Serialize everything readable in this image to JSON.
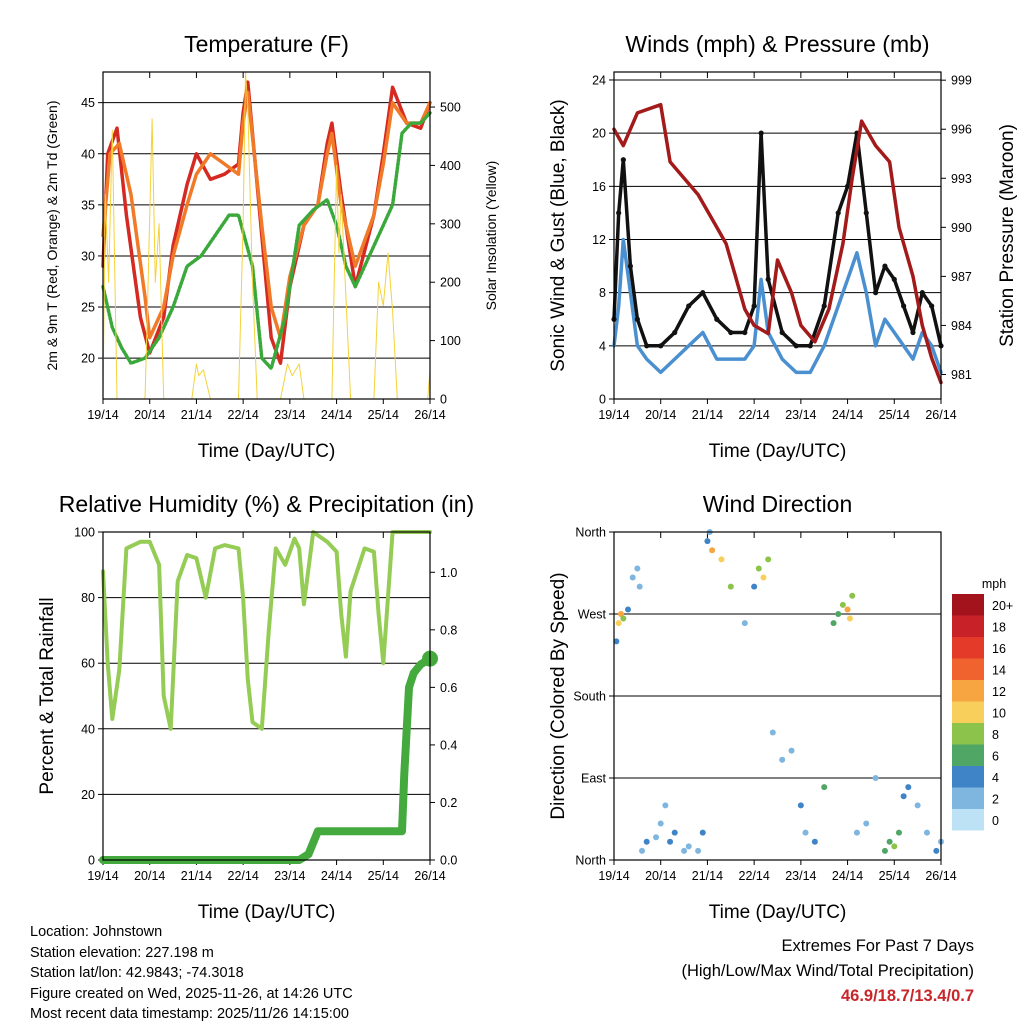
{
  "chart_data": [
    {
      "type": "line",
      "title": "Temperature (F)",
      "xlabel": "Time (Day/UTC)",
      "ylabel": "2m & 9m T (Red, Orange) & 2m Td (Green)",
      "y2label": "Solar Insolation (Yellow)",
      "categories": [
        "19/14",
        "20/14",
        "21/14",
        "22/14",
        "23/14",
        "24/14",
        "25/14",
        "26/14"
      ],
      "ylim": [
        16,
        48
      ],
      "yticks": [
        "20",
        "25",
        "30",
        "35",
        "40",
        "45"
      ],
      "y2lim": [
        0,
        560
      ],
      "y2ticks": [
        "0",
        "100",
        "200",
        "300",
        "400",
        "500"
      ],
      "series": [
        {
          "name": "2m T",
          "color": "#d42a22",
          "x": [
            0,
            0.1,
            0.3,
            0.5,
            0.8,
            1.0,
            1.3,
            1.5,
            1.8,
            2.0,
            2.3,
            2.6,
            2.9,
            3.0,
            3.1,
            3.4,
            3.6,
            3.8,
            4.0,
            4.3,
            4.6,
            4.8,
            4.9,
            5.1,
            5.4,
            5.8,
            6.0,
            6.2,
            6.5,
            6.8,
            7.0
          ],
          "values": [
            29,
            40,
            42.5,
            34,
            24,
            20.5,
            24,
            31,
            37,
            40,
            37.5,
            38,
            39,
            44,
            47,
            32,
            22,
            19.5,
            27,
            33,
            35,
            41,
            43,
            36,
            27,
            34,
            40,
            46.5,
            43,
            42.5,
            45
          ]
        },
        {
          "name": "9m T",
          "color": "#f17a28",
          "x": [
            0,
            0.15,
            0.35,
            0.6,
            0.9,
            1.0,
            1.3,
            1.5,
            1.8,
            2.0,
            2.3,
            2.6,
            2.9,
            3.0,
            3.1,
            3.4,
            3.6,
            3.8,
            4.0,
            4.3,
            4.6,
            4.8,
            4.9,
            5.1,
            5.4,
            5.8,
            6.0,
            6.2,
            6.5,
            6.8,
            7.0
          ],
          "values": [
            32,
            40,
            41,
            36,
            26,
            22,
            25,
            30,
            35,
            38,
            40,
            39,
            38,
            43,
            46,
            33,
            25,
            22,
            28,
            33,
            35,
            40,
            42,
            35,
            29,
            34,
            39,
            45,
            43,
            43,
            45
          ]
        },
        {
          "name": "2m Td",
          "color": "#3aa83a",
          "x": [
            0,
            0.2,
            0.4,
            0.6,
            0.9,
            1.2,
            1.5,
            1.8,
            2.1,
            2.4,
            2.7,
            2.9,
            3.2,
            3.4,
            3.6,
            3.9,
            4.2,
            4.5,
            4.8,
            5.0,
            5.2,
            5.4,
            5.7,
            6.0,
            6.2,
            6.4,
            6.6,
            6.8,
            7.0
          ],
          "values": [
            27,
            23,
            21,
            19.5,
            20,
            22,
            25,
            29,
            30,
            32,
            34,
            34,
            29,
            20,
            19,
            24,
            33,
            34.5,
            35.5,
            33,
            29,
            27,
            30,
            33,
            35,
            42,
            43,
            43,
            44
          ]
        },
        {
          "name": "Solar Insolation",
          "color": "#f4d23a",
          "axis": "y2",
          "x": [
            0,
            0.05,
            0.12,
            0.2,
            0.3,
            0.9,
            0.95,
            1.05,
            1.12,
            1.2,
            1.3,
            1.9,
            2.0,
            2.05,
            2.15,
            2.3,
            2.9,
            3.0,
            3.05,
            3.1,
            3.2,
            3.3,
            3.8,
            3.95,
            4.05,
            4.2,
            4.3,
            4.9,
            4.95,
            5.0,
            5.05,
            5.1,
            5.3,
            5.8,
            5.9,
            6.0,
            6.1,
            6.2,
            6.3,
            6.95,
            7.0
          ],
          "values": [
            0,
            350,
            200,
            460,
            0,
            0,
            150,
            480,
            200,
            300,
            0,
            0,
            60,
            40,
            50,
            0,
            0,
            300,
            560,
            500,
            200,
            0,
            0,
            60,
            40,
            60,
            0,
            0,
            200,
            400,
            250,
            350,
            0,
            0,
            200,
            160,
            250,
            150,
            0,
            0,
            50
          ]
        }
      ]
    },
    {
      "type": "line",
      "title": "Winds (mph) & Pressure (mb)",
      "xlabel": "Time (Day/UTC)",
      "ylabel": "Sonic Wind & Gust (Blue, Black)",
      "y2label": "Station Pressure (Maroon)",
      "categories": [
        "19/14",
        "20/14",
        "21/14",
        "22/14",
        "23/14",
        "24/14",
        "25/14",
        "26/14"
      ],
      "ylim": [
        0,
        24.6
      ],
      "yticks": [
        "0",
        "4",
        "8",
        "12",
        "16",
        "20",
        "24"
      ],
      "y2lim": [
        979.5,
        999.5
      ],
      "y2ticks": [
        "981",
        "984",
        "987",
        "990",
        "993",
        "996",
        "999"
      ],
      "series": [
        {
          "name": "Sonic Wind",
          "color": "#4a90d0",
          "x": [
            0,
            0.1,
            0.2,
            0.35,
            0.5,
            0.7,
            1.0,
            1.3,
            1.6,
            1.9,
            2.2,
            2.5,
            2.8,
            3.0,
            3.15,
            3.3,
            3.6,
            3.9,
            4.2,
            4.5,
            4.8,
            5.0,
            5.2,
            5.4,
            5.6,
            5.8,
            6.0,
            6.2,
            6.4,
            6.6,
            6.8,
            7.0
          ],
          "values": [
            4,
            7,
            12,
            8,
            4,
            3,
            2,
            3,
            4,
            5,
            3,
            3,
            3,
            4,
            9,
            5,
            3,
            2,
            2,
            4,
            7,
            9,
            11,
            8,
            4,
            6,
            5,
            4,
            3,
            5,
            4,
            2
          ]
        },
        {
          "name": "Gust",
          "color": "#111111",
          "x": [
            0,
            0.1,
            0.2,
            0.35,
            0.5,
            0.7,
            1.0,
            1.3,
            1.6,
            1.9,
            2.2,
            2.5,
            2.8,
            3.0,
            3.15,
            3.3,
            3.6,
            3.9,
            4.2,
            4.5,
            4.8,
            5.0,
            5.2,
            5.4,
            5.6,
            5.8,
            6.0,
            6.2,
            6.4,
            6.6,
            6.8,
            7.0
          ],
          "values": [
            6,
            14,
            18,
            10,
            6,
            4,
            4,
            5,
            7,
            8,
            6,
            5,
            5,
            7,
            20,
            9,
            5,
            4,
            4,
            7,
            14,
            16,
            20,
            14,
            8,
            10,
            9,
            7,
            5,
            8,
            7,
            4
          ]
        },
        {
          "name": "Station Pressure",
          "color": "#a31a1a",
          "axis": "y2",
          "x": [
            0,
            0.2,
            0.5,
            1.0,
            1.2,
            1.5,
            1.8,
            2.2,
            2.4,
            2.6,
            2.8,
            3.0,
            3.3,
            3.5,
            3.8,
            4.0,
            4.3,
            4.6,
            4.9,
            5.1,
            5.3,
            5.6,
            5.9,
            6.1,
            6.4,
            6.6,
            6.8,
            7.0
          ],
          "values": [
            996,
            995,
            997,
            997.5,
            994,
            993,
            992,
            990,
            989,
            987,
            985,
            984,
            983.5,
            988,
            986,
            984,
            983,
            985,
            989,
            993,
            996.5,
            995,
            994,
            990,
            987,
            984,
            982,
            980.5
          ]
        }
      ]
    },
    {
      "type": "line",
      "title": "Relative Humidity (%) & Precipitation (in)",
      "xlabel": "Time (Day/UTC)",
      "ylabel": "Percent & Total Rainfall",
      "categories": [
        "19/14",
        "20/14",
        "21/14",
        "22/14",
        "23/14",
        "24/14",
        "25/14",
        "26/14"
      ],
      "ylim": [
        0,
        100
      ],
      "yticks": [
        "0",
        "20",
        "40",
        "60",
        "80",
        "100"
      ],
      "y2lim": [
        0,
        1.14
      ],
      "y2ticks": [
        "0.0",
        "0.2",
        "0.4",
        "0.6",
        "0.8",
        "1.0"
      ],
      "series": [
        {
          "name": "Relative Humidity",
          "color": "#95cc55",
          "x": [
            0,
            0.1,
            0.2,
            0.35,
            0.5,
            0.8,
            1.0,
            1.2,
            1.3,
            1.45,
            1.6,
            1.8,
            2.0,
            2.2,
            2.4,
            2.6,
            2.9,
            3.0,
            3.1,
            3.2,
            3.4,
            3.55,
            3.7,
            3.9,
            4.1,
            4.2,
            4.3,
            4.5,
            4.8,
            5.0,
            5.1,
            5.2,
            5.3,
            5.6,
            5.8,
            5.9,
            6.0,
            6.2,
            6.5,
            7.0
          ],
          "values": [
            88,
            60,
            43,
            58,
            95,
            97,
            97,
            90,
            50,
            40,
            85,
            93,
            92,
            80,
            95,
            96,
            95,
            80,
            55,
            42,
            40,
            70,
            95,
            90,
            98,
            95,
            78,
            100,
            97,
            94,
            75,
            62,
            82,
            95,
            94,
            75,
            60,
            100,
            100,
            100
          ]
        },
        {
          "name": "Total Rainfall",
          "color": "#44aa3e",
          "axis": "y2",
          "x": [
            0,
            4.2,
            4.4,
            4.6,
            5.2,
            6.0,
            6.4,
            6.45,
            6.55,
            6.65,
            6.8,
            7.0
          ],
          "values": [
            0,
            0,
            0.02,
            0.1,
            0.1,
            0.1,
            0.1,
            0.3,
            0.6,
            0.65,
            0.68,
            0.7
          ]
        }
      ]
    },
    {
      "type": "scatter",
      "title": "Wind Direction",
      "xlabel": "Time (Day/UTC)",
      "ylabel": "Direction (Colored By Speed)",
      "categories": [
        "19/14",
        "20/14",
        "21/14",
        "22/14",
        "23/14",
        "24/14",
        "25/14",
        "26/14"
      ],
      "yticks": [
        "North",
        "East",
        "South",
        "West",
        "North"
      ],
      "ylim": [
        0,
        360
      ],
      "legend_title": "mph",
      "legend_labels": [
        "20+",
        "18",
        "16",
        "14",
        "12",
        "10",
        "8",
        "6",
        "4",
        "2",
        "0"
      ],
      "legend_colors": [
        "#a3131b",
        "#c92128",
        "#e43a2a",
        "#f0632f",
        "#f7a541",
        "#f7cf5a",
        "#8cc34a",
        "#4fa665",
        "#3f84c6",
        "#7eb6e0",
        "#bde1f5"
      ],
      "points": {
        "x": [
          0.05,
          0.1,
          0.15,
          0.2,
          0.3,
          0.4,
          0.5,
          0.55,
          0.6,
          0.7,
          0.9,
          1.0,
          1.1,
          1.2,
          1.3,
          1.5,
          1.6,
          1.8,
          1.9,
          2.0,
          2.05,
          2.1,
          2.3,
          2.5,
          2.8,
          3.0,
          3.1,
          3.2,
          3.3,
          3.4,
          3.6,
          3.8,
          4.0,
          4.1,
          4.3,
          4.5,
          4.7,
          4.8,
          4.9,
          5.0,
          5.05,
          5.1,
          5.2,
          5.4,
          5.6,
          5.8,
          5.9,
          6.0,
          6.1,
          6.2,
          6.3,
          6.5,
          6.7,
          6.9,
          7.0
        ],
        "dir": [
          240,
          260,
          270,
          265,
          275,
          310,
          320,
          300,
          10,
          20,
          25,
          40,
          60,
          20,
          30,
          10,
          15,
          10,
          30,
          350,
          360,
          340,
          330,
          300,
          260,
          300,
          320,
          310,
          330,
          140,
          110,
          120,
          60,
          30,
          20,
          80,
          260,
          270,
          280,
          275,
          265,
          290,
          30,
          40,
          90,
          10,
          20,
          15,
          30,
          70,
          80,
          60,
          30,
          10,
          20
        ],
        "speed": [
          4,
          10,
          12,
          8,
          4,
          3,
          2,
          2,
          3,
          4,
          3,
          2,
          3,
          5,
          4,
          3,
          2,
          3,
          4,
          4,
          3,
          12,
          11,
          8,
          3,
          5,
          9,
          10,
          8,
          3,
          2,
          3,
          4,
          2,
          4,
          6,
          6,
          7,
          8,
          12,
          10,
          8,
          3,
          2,
          3,
          6,
          7,
          8,
          6,
          5,
          4,
          3,
          2,
          4,
          3
        ]
      }
    }
  ],
  "info": {
    "location": "Location: Johnstown",
    "elevation": "Station elevation: 227.198 m",
    "latlon": "Station lat/lon: 42.9843; -74.3018",
    "created": "Figure created on Wed, 2025-11-26, at 14:26 UTC",
    "recent": "Most recent data timestamp: 2025/11/26 14:15:00"
  },
  "extremes": {
    "line1": "Extremes For Past 7 Days",
    "line2": "(High/Low/Max Wind/Total Precipitation)",
    "values": "46.9/18.7/13.4/0.7"
  }
}
